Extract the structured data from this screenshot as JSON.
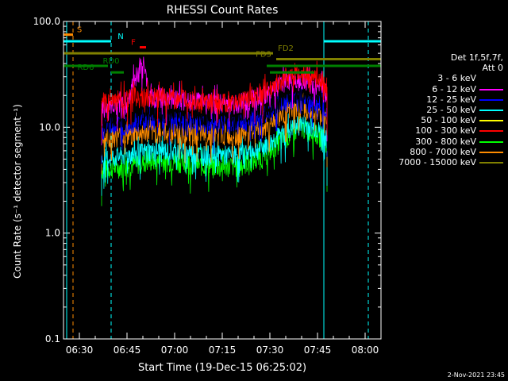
{
  "chart_data": {
    "type": "line",
    "title": "RHESSI Count Rates",
    "xlabel": "Start Time (19-Dec-15 06:25:02)",
    "ylabel": "Count Rate (s⁻¹ detector segment⁻¹)",
    "yscale": "log",
    "ylim": [
      0.1,
      100.0
    ],
    "xlim": [
      "06:25",
      "08:05"
    ],
    "x_ticks": [
      "06:30",
      "06:45",
      "07:00",
      "07:15",
      "07:30",
      "07:45",
      "08:00"
    ],
    "y_ticks": [
      "0.1",
      "1.0",
      "10.0",
      "100.0"
    ],
    "grid": false,
    "legend_position": "right",
    "series": [
      {
        "name": "3 - 6 keV",
        "color": "#000000",
        "x": [
          "06:37",
          "06:45",
          "06:52",
          "07:00",
          "07:10",
          "07:20",
          "07:28",
          "07:35",
          "07:40",
          "07:44",
          "07:48"
        ],
        "y": [
          12,
          13,
          14,
          14,
          13,
          13,
          15,
          20,
          21,
          20,
          17
        ]
      },
      {
        "name": "6 - 12 keV",
        "color": "#ff00ff",
        "x": [
          "06:37",
          "06:45",
          "06:50",
          "06:52",
          "07:00",
          "07:10",
          "07:20",
          "07:28",
          "07:35",
          "07:40",
          "07:44",
          "07:48"
        ],
        "y": [
          15,
          17,
          40,
          20,
          19,
          17,
          17,
          20,
          27,
          28,
          26,
          21
        ]
      },
      {
        "name": "12 - 25 keV",
        "color": "#0000ff",
        "x": [
          "06:37",
          "06:45",
          "06:52",
          "07:00",
          "07:10",
          "07:20",
          "07:28",
          "07:35",
          "07:40",
          "07:44",
          "07:48"
        ],
        "y": [
          10,
          11,
          12,
          12,
          11,
          11,
          13,
          17,
          18,
          17,
          15
        ]
      },
      {
        "name": "25 - 50 keV",
        "color": "#00ffff",
        "x": [
          "06:37",
          "06:45",
          "06:52",
          "07:00",
          "07:10",
          "07:20",
          "07:28",
          "07:35",
          "07:40",
          "07:44",
          "07:48"
        ],
        "y": [
          5,
          5.5,
          6,
          6,
          5.5,
          5.5,
          6.5,
          9,
          11,
          10,
          8
        ]
      },
      {
        "name": "50 - 100 keV",
        "color": "#ffff00",
        "x": [],
        "y": []
      },
      {
        "name": "100 - 300 keV",
        "color": "#ff0000",
        "x": [
          "06:37",
          "06:45",
          "06:52",
          "07:00",
          "07:10",
          "07:20",
          "07:28",
          "07:35",
          "07:40",
          "07:44",
          "07:48"
        ],
        "y": [
          17,
          19,
          20,
          19,
          17,
          17,
          21,
          30,
          32,
          30,
          24
        ]
      },
      {
        "name": "300 - 800 keV",
        "color": "#00ff00",
        "x": [
          "06:37",
          "06:45",
          "06:52",
          "07:00",
          "07:10",
          "07:20",
          "07:28",
          "07:35",
          "07:40",
          "07:44",
          "07:48"
        ],
        "y": [
          4,
          4.3,
          4.8,
          4.8,
          4.3,
          4.3,
          5.2,
          8,
          10,
          9,
          7
        ]
      },
      {
        "name": "800 - 7000 keV",
        "color": "#ff8c00",
        "x": [
          "06:37",
          "06:45",
          "06:52",
          "07:00",
          "07:10",
          "07:20",
          "07:28",
          "07:35",
          "07:40",
          "07:44",
          "07:48"
        ],
        "y": [
          8,
          8.5,
          9,
          9,
          8.5,
          8.5,
          10,
          14,
          15,
          14,
          12
        ]
      },
      {
        "name": "7000 - 15000 keV",
        "color": "#808000",
        "x": [],
        "y": []
      }
    ],
    "state_bars": [
      {
        "label": "S",
        "color": "#ff8c00",
        "start": "06:25",
        "end": "06:28",
        "level": 75,
        "label_x": "06:30"
      },
      {
        "label": "N",
        "color": "#00ffff",
        "start": "06:25",
        "end": "06:40",
        "level": 65,
        "label_x": "06:43"
      },
      {
        "label": "N",
        "color": "#00ffff",
        "start": "07:47",
        "end": "08:05",
        "level": 65,
        "label_x": ""
      },
      {
        "label": "F",
        "color": "#ff0000",
        "start": "06:49",
        "end": "06:51",
        "level": 57,
        "label_x": "06:47"
      },
      {
        "label": "FD2",
        "color": "#808000",
        "start": "06:25",
        "end": "07:31",
        "level": 50,
        "label_x": "07:35"
      },
      {
        "label": "FD3",
        "color": "#808000",
        "start": "07:32",
        "end": "08:05",
        "level": 44,
        "label_x": "07:28"
      },
      {
        "label": "RD0",
        "color": "#008000",
        "start": "06:25",
        "end": "06:39",
        "level": 38,
        "label_x": "06:40"
      },
      {
        "label": "RD0",
        "color": "#008000",
        "start": "07:29",
        "end": "08:05",
        "level": 38,
        "label_x": ""
      },
      {
        "label": "RD6",
        "color": "#008000",
        "start": "06:40",
        "end": "06:44",
        "level": 33,
        "label_x": "06:32"
      },
      {
        "label": "RD6",
        "color": "#008000",
        "start": "07:30",
        "end": "07:44",
        "level": 33,
        "label_x": ""
      }
    ],
    "vlines": [
      {
        "x": "06:26",
        "color": "#00ffff",
        "style": "solid"
      },
      {
        "x": "06:28",
        "color": "#ff8c00",
        "style": "dashed"
      },
      {
        "x": "06:40",
        "color": "#00ffff",
        "style": "dashed"
      },
      {
        "x": "07:47",
        "color": "#00ffff",
        "style": "solid"
      },
      {
        "x": "08:01",
        "color": "#00ffff",
        "style": "dashed"
      }
    ]
  },
  "legend": {
    "header_line1": "Det 1f,5f,7f,",
    "header_line2": "Att 0"
  },
  "timestamp": "2-Nov-2021 23:45"
}
